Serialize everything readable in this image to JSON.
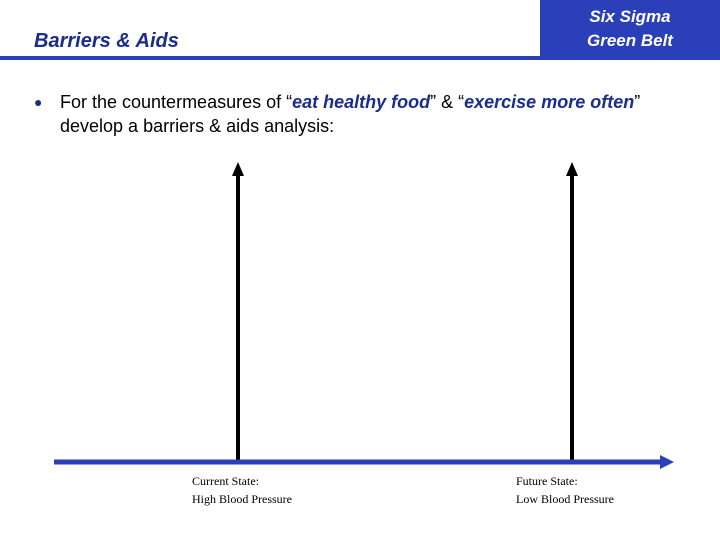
{
  "header": {
    "title": "Barriers & Aids",
    "badge_line1": "Six Sigma",
    "badge_line2": "Green Belt",
    "accent_color": "#2a3fb8"
  },
  "bullet": {
    "part1": "For the countermeasures of “",
    "em1": "eat healthy food",
    "part2": "” & “",
    "em2": "exercise more often",
    "part3": "” develop a barriers & aids analysis:"
  },
  "diagram": {
    "current_state_line1": "Current State:",
    "current_state_line2": "High Blood Pressure",
    "future_state_line1": "Future State:",
    "future_state_line2": "Low Blood Pressure"
  }
}
